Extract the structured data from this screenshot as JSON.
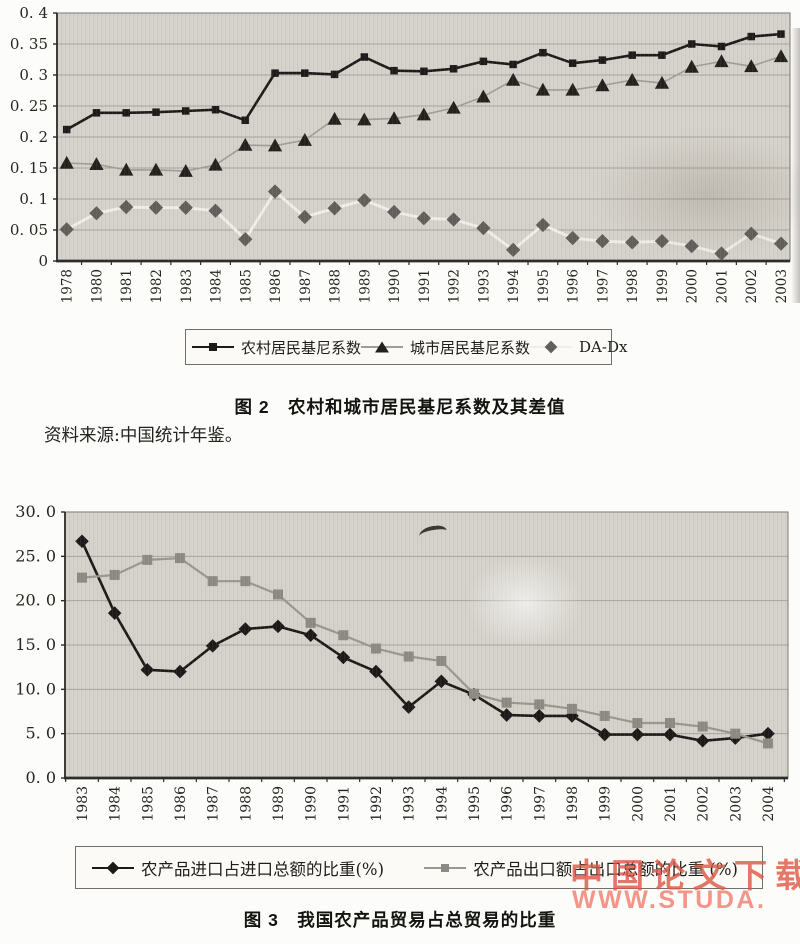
{
  "page": {
    "source_note": "资料来源:中国统计年鉴。",
    "watermark_line1": "中国论文下载",
    "watermark_line2": "WWW.STUDA.",
    "watermark_color1": "#de5846",
    "watermark_color2": "#f28273"
  },
  "chart_data": [
    {
      "type": "line",
      "title": "图 2　农村和城市居民基尼系数及其差值",
      "xlabel": "",
      "ylabel": "",
      "ylim": [
        0,
        0.4
      ],
      "ytick_step": 0.05,
      "ytick_labels": [
        "0",
        "0. 05",
        "0. 1",
        "0. 15",
        "0. 2",
        "0. 25",
        "0. 3",
        "0. 35",
        "0. 4"
      ],
      "grid": true,
      "legend_position": "bottom",
      "plot_bg": "#d5d2cb",
      "categories": [
        "1978",
        "1980",
        "1981",
        "1982",
        "1983",
        "1984",
        "1985",
        "1986",
        "1987",
        "1988",
        "1989",
        "1990",
        "1991",
        "1992",
        "1993",
        "1994",
        "1995",
        "1996",
        "1997",
        "1998",
        "1999",
        "2000",
        "2001",
        "2002",
        "2003"
      ],
      "series": [
        {
          "name": "农村居民基尼系数",
          "marker": "square",
          "line_color": "#1d1b19",
          "marker_color": "#1d1b19",
          "values": [
            0.212,
            0.239,
            0.239,
            0.24,
            0.242,
            0.244,
            0.227,
            0.303,
            0.303,
            0.301,
            0.329,
            0.307,
            0.306,
            0.31,
            0.322,
            0.317,
            0.336,
            0.319,
            0.324,
            0.332,
            0.332,
            0.35,
            0.346,
            0.362,
            0.366
          ]
        },
        {
          "name": "城市居民基尼系数",
          "marker": "triangle",
          "line_color": "#a09c96",
          "marker_color": "#23211e",
          "values": [
            0.158,
            0.156,
            0.147,
            0.147,
            0.145,
            0.155,
            0.187,
            0.186,
            0.195,
            0.229,
            0.228,
            0.23,
            0.236,
            0.247,
            0.265,
            0.292,
            0.276,
            0.276,
            0.283,
            0.292,
            0.287,
            0.313,
            0.322,
            0.314,
            0.33
          ]
        },
        {
          "name": "DA-Dx",
          "marker": "diamond",
          "line_color": "#f0eee9",
          "marker_color": "#615f5b",
          "values": [
            0.051,
            0.077,
            0.087,
            0.086,
            0.086,
            0.081,
            0.035,
            0.112,
            0.071,
            0.085,
            0.098,
            0.079,
            0.069,
            0.067,
            0.053,
            0.018,
            0.058,
            0.037,
            0.032,
            0.03,
            0.032,
            0.024,
            0.012,
            0.044,
            0.028
          ]
        }
      ]
    },
    {
      "type": "line",
      "title": "图 3　我国农产品贸易占总贸易的比重",
      "xlabel": "",
      "ylabel": "",
      "ylim": [
        0,
        30
      ],
      "ytick_step": 5,
      "ytick_labels": [
        "0. 0",
        "5. 0",
        "10. 0",
        "15. 0",
        "20. 0",
        "25. 0",
        "30. 0"
      ],
      "grid": true,
      "legend_position": "bottom",
      "plot_bg": "#d5d2cb",
      "categories": [
        "1983",
        "1984",
        "1985",
        "1986",
        "1987",
        "1988",
        "1989",
        "1990",
        "1991",
        "1992",
        "1993",
        "1994",
        "1995",
        "1996",
        "1997",
        "1998",
        "1999",
        "2000",
        "2001",
        "2002",
        "2003",
        "2004"
      ],
      "series": [
        {
          "name": "农产品进口占进口总额的比重(%)",
          "marker": "diamond",
          "line_color": "#1b1a18",
          "marker_color": "#1b1a18",
          "values": [
            26.7,
            18.6,
            12.2,
            12.0,
            14.9,
            16.8,
            17.1,
            16.1,
            13.6,
            12.0,
            8.0,
            10.9,
            9.4,
            7.1,
            7.0,
            7.0,
            4.9,
            4.9,
            4.9,
            4.2,
            4.5,
            5.0
          ]
        },
        {
          "name": "农产品出口额占出口总额的比重 (%)",
          "marker": "square",
          "line_color": "#9a9691",
          "marker_color": "#8d8983",
          "values": [
            22.6,
            22.9,
            24.6,
            24.8,
            22.2,
            22.2,
            20.7,
            17.5,
            16.1,
            14.6,
            13.7,
            13.2,
            9.5,
            8.5,
            8.3,
            7.8,
            7.0,
            6.2,
            6.2,
            5.8,
            5.0,
            3.9
          ]
        }
      ]
    }
  ]
}
